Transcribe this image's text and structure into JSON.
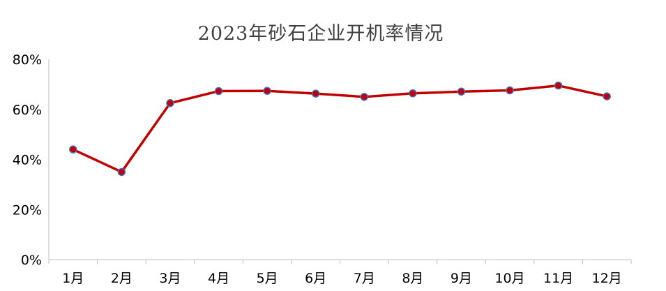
{
  "chart_data": {
    "type": "line",
    "title": "2023年砂石企业开机率情况",
    "categories": [
      "1月",
      "2月",
      "3月",
      "4月",
      "5月",
      "6月",
      "7月",
      "8月",
      "9月",
      "10月",
      "11月",
      "12月"
    ],
    "series": [
      {
        "values": [
          44.0,
          35.0,
          62.5,
          67.3,
          67.4,
          66.3,
          65.0,
          66.4,
          67.1,
          67.6,
          69.5,
          65.2
        ],
        "line_color": "#C00000",
        "marker_fill": "#C00000",
        "marker_stroke": "#4472C4"
      }
    ],
    "y_ticks": [
      "0%",
      "20%",
      "40%",
      "60%",
      "80%"
    ],
    "y_tick_values": [
      0,
      20,
      40,
      60,
      80
    ],
    "ylim": [
      0,
      80
    ],
    "grid": false,
    "legend": "none",
    "xlabel": "",
    "ylabel": ""
  }
}
